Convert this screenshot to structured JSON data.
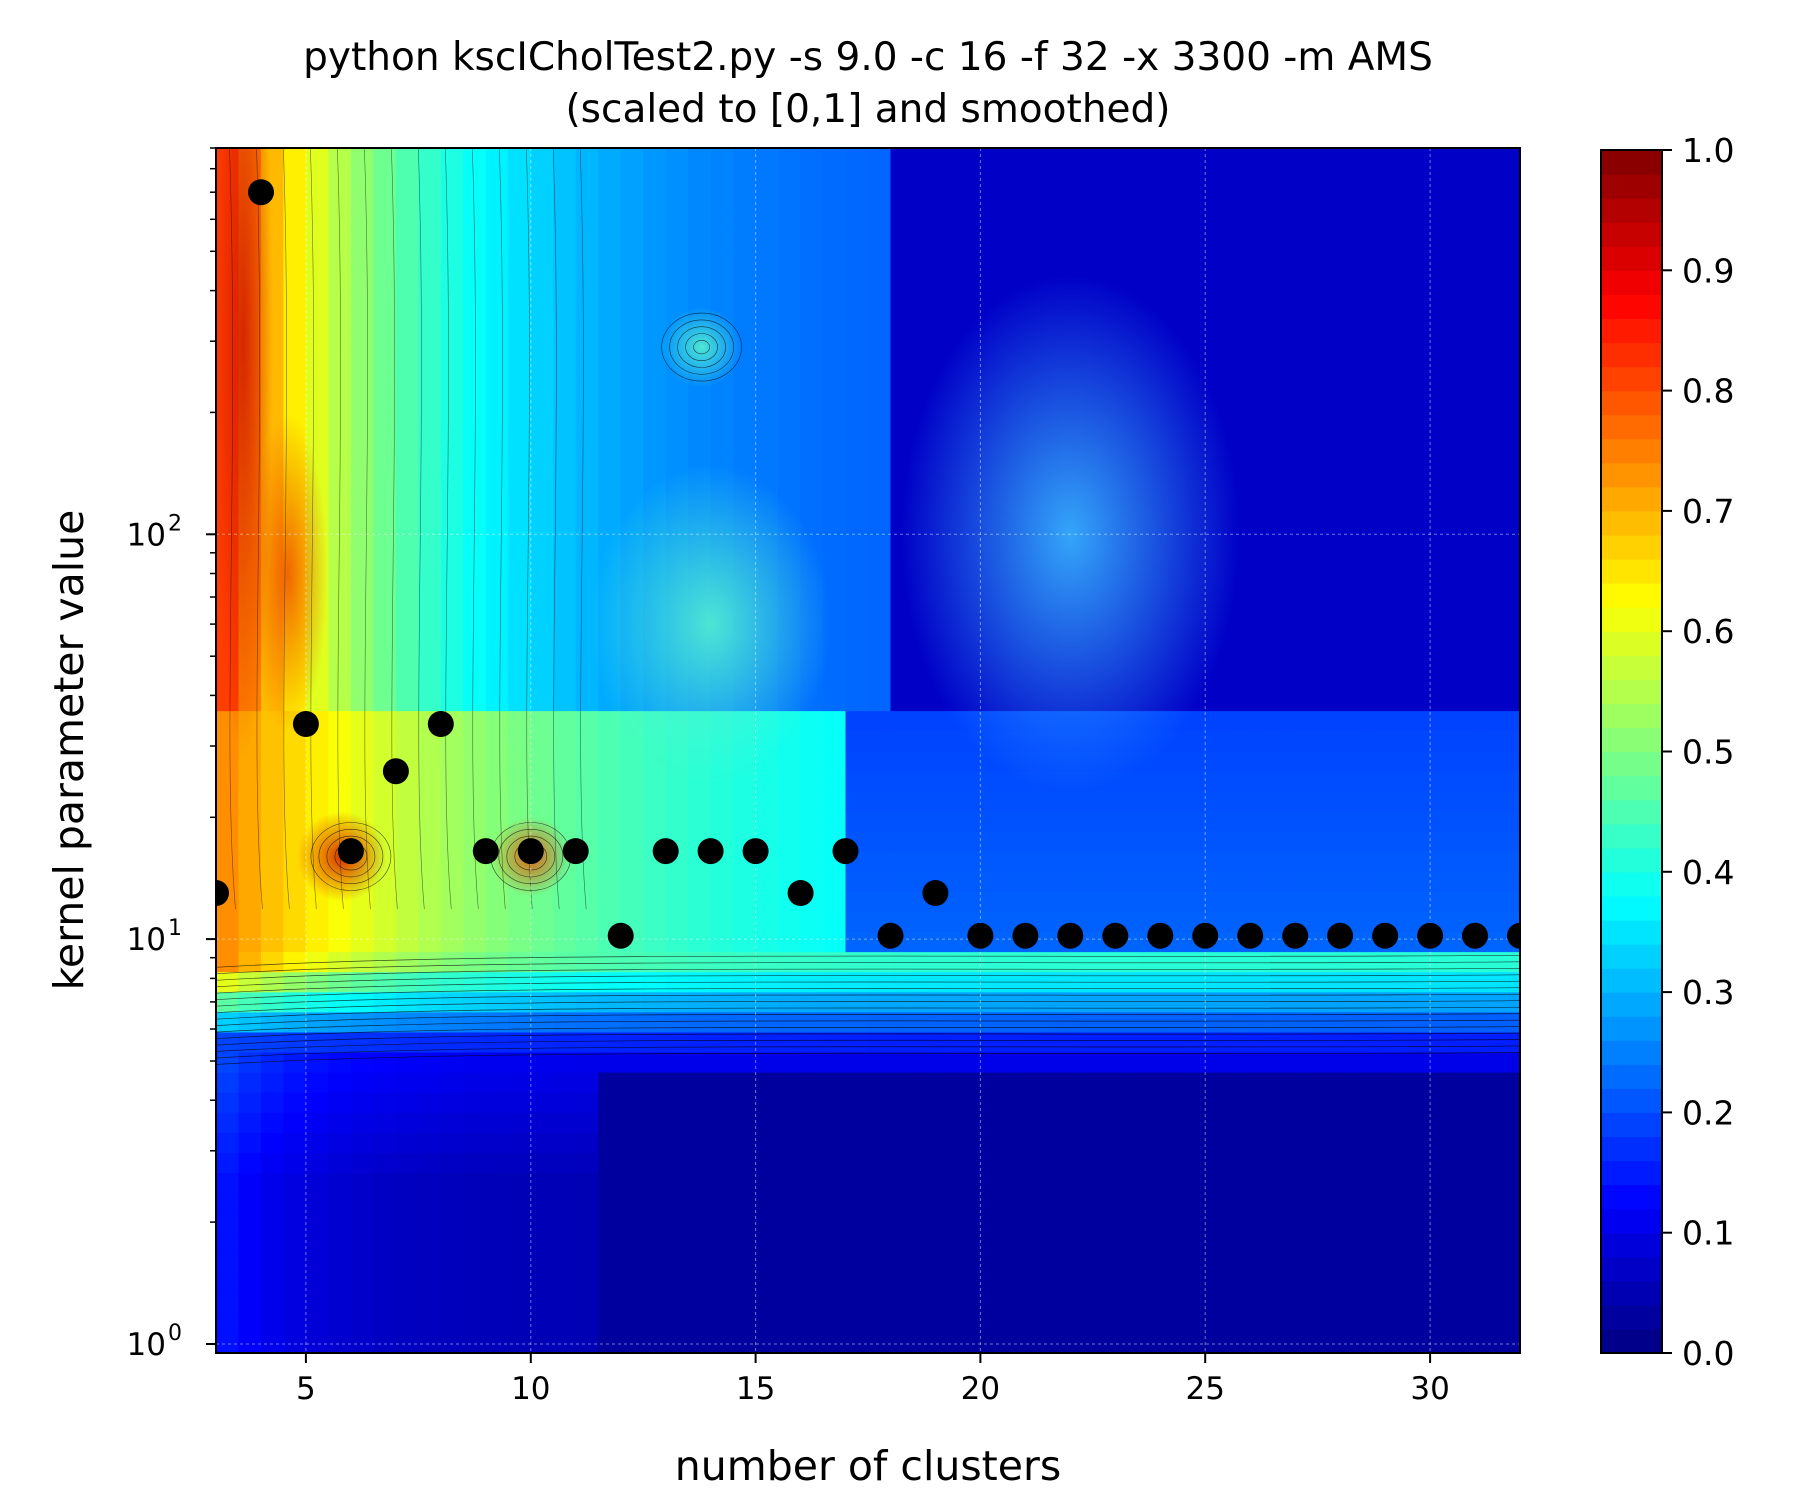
{
  "chart_data": {
    "type": "heatmap",
    "title": "python kscICholTest2.py -s 9.0 -c 16 -f 32 -x 3300 -m AMS",
    "subtitle": "(scaled to [0,1] and smoothed)",
    "xlabel": "number of clusters",
    "ylabel": "kernel parameter value",
    "x_range": [
      3,
      32
    ],
    "y_range": [
      0.95,
      900
    ],
    "y_scale": "log",
    "x_ticks": [
      "5",
      "10",
      "15",
      "20",
      "25",
      "30"
    ],
    "y_tick_labels": [
      {
        "base": "10",
        "exp": "0",
        "value": 1
      },
      {
        "base": "10",
        "exp": "1",
        "value": 10
      },
      {
        "base": "10",
        "exp": "2",
        "value": 100
      }
    ],
    "colorbar": {
      "colormap": "jet",
      "range": [
        0,
        1
      ],
      "ticks": [
        "0.0",
        "0.1",
        "0.2",
        "0.3",
        "0.4",
        "0.5",
        "0.6",
        "0.7",
        "0.8",
        "0.9",
        "1.0"
      ]
    },
    "grid": true,
    "markers": {
      "name": "",
      "color": "#000000",
      "points": [
        {
          "x": 3,
          "y": 13
        },
        {
          "x": 4,
          "y": 700
        },
        {
          "x": 5,
          "y": 34
        },
        {
          "x": 6,
          "y": 16.5
        },
        {
          "x": 7,
          "y": 26
        },
        {
          "x": 8,
          "y": 34
        },
        {
          "x": 9,
          "y": 16.5
        },
        {
          "x": 10,
          "y": 16.5
        },
        {
          "x": 11,
          "y": 16.5
        },
        {
          "x": 12,
          "y": 10.2
        },
        {
          "x": 13,
          "y": 16.5
        },
        {
          "x": 14,
          "y": 16.5
        },
        {
          "x": 15,
          "y": 16.5
        },
        {
          "x": 16,
          "y": 13
        },
        {
          "x": 17,
          "y": 16.5
        },
        {
          "x": 18,
          "y": 10.2
        },
        {
          "x": 19,
          "y": 13
        },
        {
          "x": 20,
          "y": 10.2
        },
        {
          "x": 21,
          "y": 10.2
        },
        {
          "x": 22,
          "y": 10.2
        },
        {
          "x": 23,
          "y": 10.2
        },
        {
          "x": 24,
          "y": 10.2
        },
        {
          "x": 25,
          "y": 10.2
        },
        {
          "x": 26,
          "y": 10.2
        },
        {
          "x": 27,
          "y": 10.2
        },
        {
          "x": 28,
          "y": 10.2
        },
        {
          "x": 29,
          "y": 10.2
        },
        {
          "x": 30,
          "y": 10.2
        },
        {
          "x": 31,
          "y": 10.2
        },
        {
          "x": 32,
          "y": 10.2
        }
      ]
    }
  }
}
